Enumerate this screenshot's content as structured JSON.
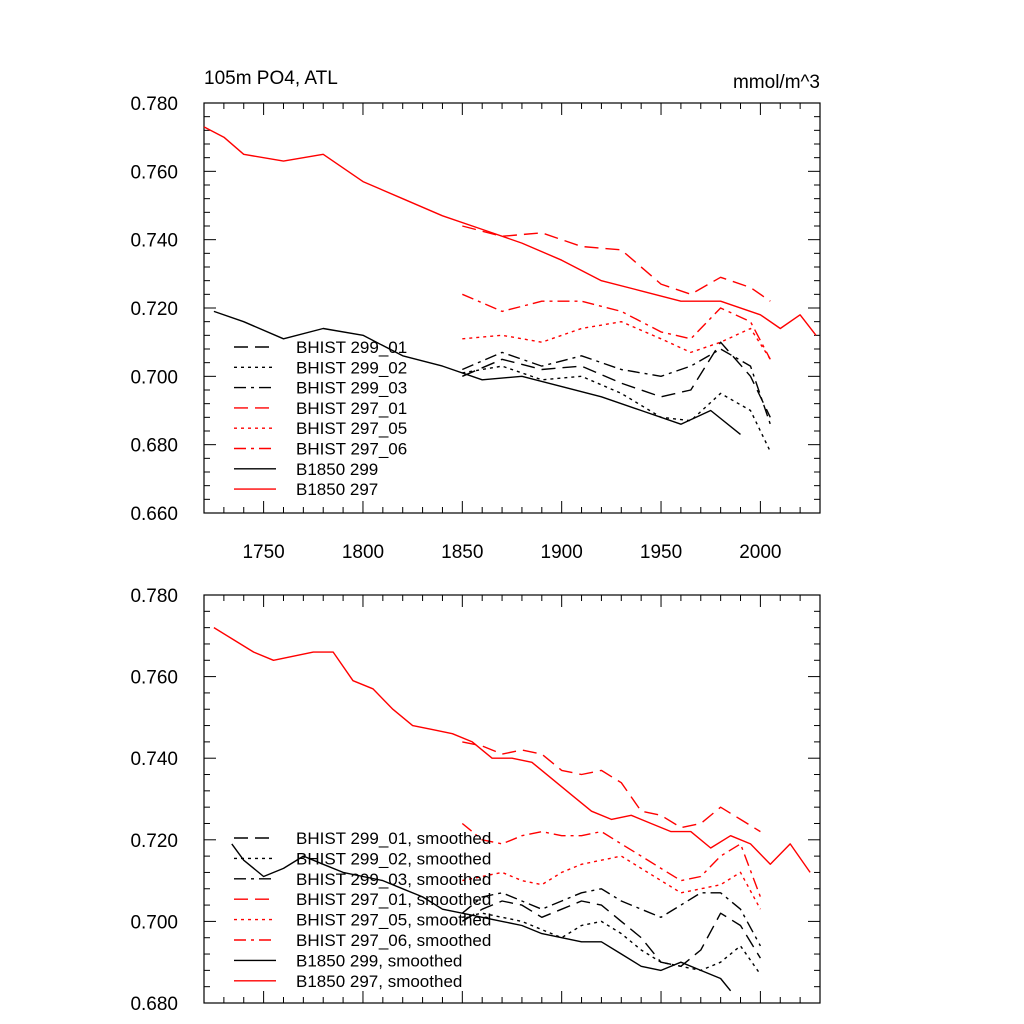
{
  "chart_data": [
    {
      "type": "line",
      "title_left": "105m PO4, ATL",
      "title_right": "mmol/m^3",
      "xlim": [
        1720,
        2030
      ],
      "ylim": [
        0.66,
        0.78
      ],
      "xticks": [
        1750,
        1800,
        1850,
        1900,
        1950,
        2000
      ],
      "xtick_labels": [
        "1750",
        "1800",
        "1850",
        "1900",
        "1950",
        "2000"
      ],
      "yticks": [
        0.66,
        0.68,
        0.7,
        0.72,
        0.74,
        0.76,
        0.78
      ],
      "ytick_labels": [
        "0.660",
        "0.680",
        "0.700",
        "0.720",
        "0.740",
        "0.760",
        "0.780"
      ],
      "legend_position": "lower-left",
      "series": [
        {
          "name": "BHIST 299_01",
          "color": "#000000",
          "dash": "dashed",
          "x": [
            1850,
            1870,
            1890,
            1910,
            1930,
            1950,
            1965,
            1980,
            1995,
            2005
          ],
          "y": [
            0.7,
            0.705,
            0.702,
            0.703,
            0.698,
            0.694,
            0.696,
            0.71,
            0.7,
            0.688
          ]
        },
        {
          "name": "BHIST 299_02",
          "color": "#000000",
          "dash": "dotted",
          "x": [
            1850,
            1870,
            1890,
            1910,
            1930,
            1950,
            1965,
            1980,
            1995,
            2005
          ],
          "y": [
            0.701,
            0.703,
            0.699,
            0.7,
            0.695,
            0.688,
            0.687,
            0.695,
            0.69,
            0.678
          ]
        },
        {
          "name": "BHIST 299_03",
          "color": "#000000",
          "dash": "dashdot",
          "x": [
            1850,
            1870,
            1890,
            1910,
            1930,
            1950,
            1965,
            1980,
            1995,
            2005
          ],
          "y": [
            0.702,
            0.707,
            0.703,
            0.706,
            0.702,
            0.7,
            0.703,
            0.708,
            0.703,
            0.686
          ]
        },
        {
          "name": "BHIST 297_01",
          "color": "#ff0000",
          "dash": "dashed",
          "x": [
            1850,
            1870,
            1890,
            1910,
            1930,
            1950,
            1965,
            1980,
            1995,
            2005
          ],
          "y": [
            0.744,
            0.741,
            0.742,
            0.738,
            0.737,
            0.727,
            0.724,
            0.729,
            0.726,
            0.722
          ]
        },
        {
          "name": "BHIST 297_05",
          "color": "#ff0000",
          "dash": "dotted",
          "x": [
            1850,
            1870,
            1890,
            1910,
            1930,
            1950,
            1965,
            1980,
            1995,
            2005
          ],
          "y": [
            0.711,
            0.712,
            0.71,
            0.714,
            0.716,
            0.711,
            0.707,
            0.71,
            0.714,
            0.705
          ]
        },
        {
          "name": "BHIST 297_06",
          "color": "#ff0000",
          "dash": "dashdot",
          "x": [
            1850,
            1870,
            1890,
            1910,
            1930,
            1950,
            1965,
            1980,
            1995,
            2005
          ],
          "y": [
            0.724,
            0.719,
            0.722,
            0.722,
            0.719,
            0.713,
            0.711,
            0.72,
            0.716,
            0.705
          ]
        },
        {
          "name": "B1850 299",
          "color": "#000000",
          "dash": "solid",
          "x": [
            1725,
            1740,
            1760,
            1780,
            1800,
            1820,
            1840,
            1860,
            1880,
            1900,
            1920,
            1940,
            1960,
            1975,
            1990
          ],
          "y": [
            0.719,
            0.716,
            0.711,
            0.714,
            0.712,
            0.706,
            0.703,
            0.699,
            0.7,
            0.697,
            0.694,
            0.69,
            0.686,
            0.69,
            0.683
          ]
        },
        {
          "name": "B1850 297",
          "color": "#ff0000",
          "dash": "solid",
          "x": [
            1720,
            1730,
            1740,
            1760,
            1780,
            1800,
            1820,
            1840,
            1860,
            1880,
            1900,
            1920,
            1940,
            1960,
            1980,
            2000,
            2010,
            2020,
            2028
          ],
          "y": [
            0.773,
            0.77,
            0.765,
            0.763,
            0.765,
            0.757,
            0.752,
            0.747,
            0.743,
            0.739,
            0.734,
            0.728,
            0.725,
            0.722,
            0.722,
            0.718,
            0.714,
            0.718,
            0.712
          ]
        }
      ]
    },
    {
      "type": "line",
      "xlim": [
        1720,
        2030
      ],
      "ylim": [
        0.68,
        0.78
      ],
      "xticks": [
        1750,
        1800,
        1850,
        1900,
        1950,
        2000
      ],
      "yticks": [
        0.68,
        0.7,
        0.72,
        0.74,
        0.76,
        0.78
      ],
      "ytick_labels": [
        "0.680",
        "0.700",
        "0.720",
        "0.740",
        "0.760",
        "0.780"
      ],
      "legend_position": "lower-left",
      "series": [
        {
          "name": "BHIST 299_01, smoothed",
          "color": "#000000",
          "dash": "dashed",
          "x": [
            1850,
            1860,
            1870,
            1880,
            1890,
            1900,
            1910,
            1920,
            1930,
            1940,
            1950,
            1960,
            1970,
            1980,
            1990,
            2000
          ],
          "y": [
            0.7,
            0.703,
            0.705,
            0.704,
            0.701,
            0.703,
            0.705,
            0.704,
            0.7,
            0.696,
            0.69,
            0.689,
            0.693,
            0.702,
            0.699,
            0.691
          ]
        },
        {
          "name": "BHIST 299_02, smoothed",
          "color": "#000000",
          "dash": "dotted",
          "x": [
            1850,
            1860,
            1870,
            1880,
            1890,
            1900,
            1910,
            1920,
            1930,
            1940,
            1950,
            1960,
            1970,
            1980,
            1990,
            2000
          ],
          "y": [
            0.701,
            0.702,
            0.701,
            0.7,
            0.698,
            0.696,
            0.699,
            0.7,
            0.697,
            0.693,
            0.69,
            0.689,
            0.688,
            0.69,
            0.694,
            0.687
          ]
        },
        {
          "name": "BHIST 299_03, smoothed",
          "color": "#000000",
          "dash": "dashdot",
          "x": [
            1850,
            1860,
            1870,
            1880,
            1890,
            1900,
            1910,
            1920,
            1930,
            1940,
            1950,
            1960,
            1970,
            1980,
            1990,
            2000
          ],
          "y": [
            0.702,
            0.706,
            0.707,
            0.705,
            0.703,
            0.705,
            0.707,
            0.708,
            0.705,
            0.703,
            0.701,
            0.704,
            0.707,
            0.707,
            0.703,
            0.694
          ]
        },
        {
          "name": "BHIST 297_01, smoothed",
          "color": "#ff0000",
          "dash": "dashed",
          "x": [
            1850,
            1860,
            1870,
            1880,
            1890,
            1900,
            1910,
            1920,
            1930,
            1940,
            1950,
            1960,
            1970,
            1980,
            1990,
            2000
          ],
          "y": [
            0.744,
            0.743,
            0.741,
            0.742,
            0.741,
            0.737,
            0.736,
            0.737,
            0.734,
            0.727,
            0.726,
            0.723,
            0.724,
            0.728,
            0.725,
            0.722
          ]
        },
        {
          "name": "BHIST 297_05, smoothed",
          "color": "#ff0000",
          "dash": "dotted",
          "x": [
            1850,
            1860,
            1870,
            1880,
            1890,
            1900,
            1910,
            1920,
            1930,
            1940,
            1950,
            1960,
            1970,
            1980,
            1990,
            2000
          ],
          "y": [
            0.71,
            0.711,
            0.712,
            0.71,
            0.709,
            0.712,
            0.714,
            0.715,
            0.716,
            0.713,
            0.71,
            0.707,
            0.708,
            0.709,
            0.712,
            0.703
          ]
        },
        {
          "name": "BHIST 297_06, smoothed",
          "color": "#ff0000",
          "dash": "dashdot",
          "x": [
            1850,
            1860,
            1870,
            1880,
            1890,
            1900,
            1910,
            1920,
            1930,
            1940,
            1950,
            1960,
            1970,
            1980,
            1990,
            2000
          ],
          "y": [
            0.724,
            0.72,
            0.719,
            0.721,
            0.722,
            0.721,
            0.721,
            0.722,
            0.719,
            0.716,
            0.713,
            0.71,
            0.711,
            0.716,
            0.719,
            0.706
          ]
        },
        {
          "name": "B1850 299, smoothed",
          "color": "#000000",
          "dash": "solid",
          "x": [
            1734,
            1740,
            1750,
            1760,
            1770,
            1780,
            1790,
            1800,
            1810,
            1820,
            1830,
            1840,
            1850,
            1860,
            1870,
            1880,
            1890,
            1900,
            1910,
            1920,
            1930,
            1940,
            1950,
            1960,
            1970,
            1980,
            1985
          ],
          "y": [
            0.719,
            0.715,
            0.711,
            0.713,
            0.716,
            0.714,
            0.712,
            0.711,
            0.71,
            0.708,
            0.706,
            0.703,
            0.702,
            0.701,
            0.7,
            0.699,
            0.697,
            0.696,
            0.695,
            0.695,
            0.692,
            0.689,
            0.688,
            0.69,
            0.688,
            0.686,
            0.683
          ]
        },
        {
          "name": "B1850 297, smoothed",
          "color": "#ff0000",
          "dash": "solid",
          "x": [
            1725,
            1735,
            1745,
            1755,
            1765,
            1775,
            1785,
            1795,
            1805,
            1815,
            1825,
            1835,
            1845,
            1855,
            1865,
            1875,
            1885,
            1895,
            1905,
            1915,
            1925,
            1935,
            1945,
            1955,
            1965,
            1975,
            1985,
            1995,
            2005,
            2015,
            2025
          ],
          "y": [
            0.772,
            0.769,
            0.766,
            0.764,
            0.765,
            0.766,
            0.766,
            0.759,
            0.757,
            0.752,
            0.748,
            0.747,
            0.746,
            0.744,
            0.74,
            0.74,
            0.739,
            0.735,
            0.731,
            0.727,
            0.725,
            0.726,
            0.724,
            0.722,
            0.722,
            0.718,
            0.721,
            0.719,
            0.714,
            0.719,
            0.712
          ]
        }
      ]
    }
  ]
}
